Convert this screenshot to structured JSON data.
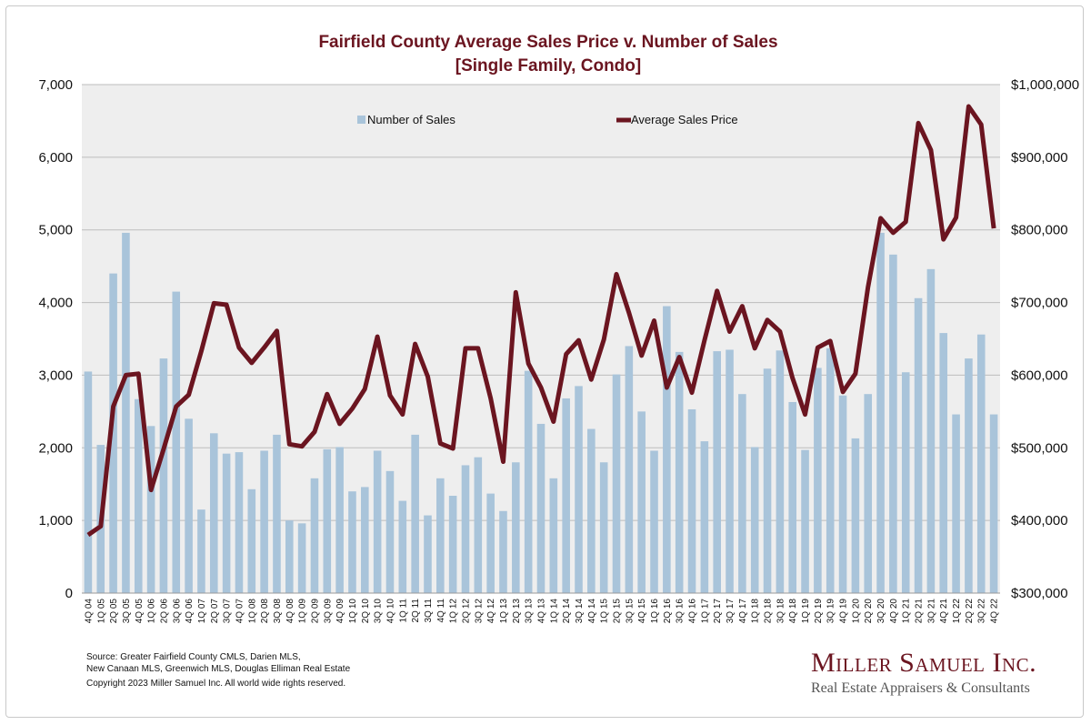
{
  "chart_data": {
    "type": "bar+line",
    "title": "Fairfield County Average Sales Price v. Number of Sales",
    "subtitle": "[Single Family, Condo]",
    "categories": [
      "4Q 04",
      "1Q 05",
      "2Q 05",
      "3Q 05",
      "4Q 05",
      "1Q 06",
      "2Q 06",
      "3Q 06",
      "4Q 06",
      "1Q 07",
      "2Q 07",
      "3Q 07",
      "4Q 07",
      "1Q 08",
      "2Q 08",
      "3Q 08",
      "4Q 08",
      "1Q 09",
      "2Q 09",
      "3Q 09",
      "4Q 09",
      "1Q 10",
      "2Q 10",
      "3Q 10",
      "4Q 10",
      "1Q 11",
      "2Q 11",
      "3Q 11",
      "4Q 11",
      "1Q 12",
      "2Q 12",
      "3Q 12",
      "4Q 12",
      "1Q 13",
      "2Q 13",
      "3Q 13",
      "4Q 13",
      "1Q 14",
      "2Q 14",
      "3Q 14",
      "4Q 14",
      "1Q 15",
      "2Q 15",
      "3Q 15",
      "4Q 15",
      "1Q 16",
      "2Q 16",
      "3Q 16",
      "4Q 16",
      "1Q 17",
      "2Q 17",
      "3Q 17",
      "4Q 17",
      "1Q 18",
      "2Q 18",
      "3Q 18",
      "4Q 18",
      "1Q 19",
      "2Q 19",
      "3Q 19",
      "4Q 19",
      "1Q 20",
      "2Q 20",
      "3Q 20",
      "4Q 20",
      "1Q 21",
      "2Q 21",
      "3Q 21",
      "4Q 21",
      "1Q 22",
      "2Q 22",
      "3Q 22",
      "4Q 22"
    ],
    "series": [
      {
        "name": "Number of Sales",
        "type": "bar",
        "axis": "left",
        "color": "#a9c4da",
        "values": [
          3050,
          2040,
          4400,
          4960,
          2670,
          2300,
          3230,
          4150,
          2400,
          1150,
          2200,
          1920,
          1940,
          1430,
          1960,
          2180,
          1000,
          960,
          1580,
          1980,
          2010,
          1400,
          1460,
          1960,
          1680,
          1270,
          2180,
          1070,
          1580,
          1340,
          1760,
          1870,
          1370,
          1130,
          1800,
          3060,
          2330,
          1580,
          2680,
          2850,
          2260,
          1800,
          3010,
          3400,
          2500,
          1960,
          3950,
          3320,
          2530,
          2090,
          3330,
          3350,
          2740,
          2010,
          3090,
          3340,
          2630,
          1970,
          3100,
          3370,
          2720,
          2130,
          2740,
          4960,
          4660,
          3040,
          4060,
          4460,
          3580,
          2460,
          3230,
          3560,
          2460
        ]
      },
      {
        "name": "Average Sales Price",
        "type": "line",
        "axis": "right",
        "color": "#6b1520",
        "values": [
          380000,
          392000,
          557000,
          600000,
          602000,
          442000,
          498000,
          557000,
          573000,
          633000,
          699000,
          697000,
          638000,
          617000,
          638000,
          661000,
          505000,
          502000,
          522000,
          574000,
          533000,
          554000,
          581000,
          653000,
          572000,
          546000,
          643000,
          598000,
          506000,
          499000,
          637000,
          637000,
          568000,
          481000,
          714000,
          616000,
          583000,
          536000,
          629000,
          648000,
          594000,
          649000,
          739000,
          686000,
          627000,
          675000,
          583000,
          625000,
          576000,
          648000,
          716000,
          660000,
          695000,
          637000,
          676000,
          660000,
          596000,
          546000,
          638000,
          647000,
          577000,
          602000,
          721000,
          816000,
          796000,
          811000,
          947000,
          910000,
          787000,
          817000,
          970000,
          945000,
          802000
        ]
      }
    ],
    "y_left": {
      "min": 0,
      "max": 7000,
      "ticks": [
        "0",
        "1,000",
        "2,000",
        "3,000",
        "4,000",
        "5,000",
        "6,000",
        "7,000"
      ]
    },
    "y_right": {
      "min": 300000,
      "max": 1000000,
      "ticks": [
        "$300,000",
        "$400,000",
        "$500,000",
        "$600,000",
        "$700,000",
        "$800,000",
        "$900,000",
        "$1,000,000"
      ]
    },
    "grid": true,
    "legend_position": "top"
  },
  "footer": {
    "source_line1": "Source:  Greater Fairfield County CMLS, Darien MLS,",
    "source_line2": "New Canaan MLS, Greenwich MLS, Douglas Elliman Real Estate",
    "copyright": "Copyright 2023 Miller Samuel Inc.  All world wide rights reserved."
  },
  "logo": {
    "name": "Miller Samuel Inc.",
    "tagline": "Real Estate Appraisers & Consultants"
  }
}
